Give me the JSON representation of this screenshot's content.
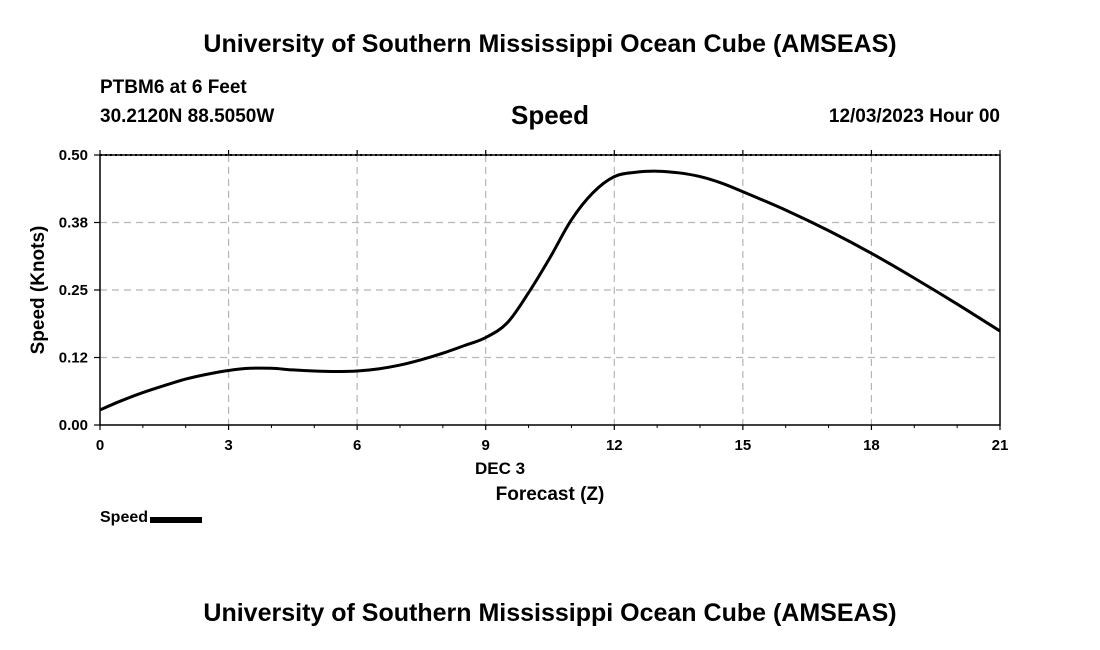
{
  "header": {
    "title": "University of Southern Mississippi Ocean Cube (AMSEAS)",
    "station": "PTBM6 at 6 Feet",
    "coords": "30.2120N  88.5050W",
    "date": "12/03/2023 Hour 00",
    "footer_title": "University of Southern Mississippi Ocean Cube (AMSEAS)"
  },
  "chart_data": {
    "type": "line",
    "title": "Speed",
    "xlabel": "Forecast (Z)",
    "xsublabel": "DEC 3",
    "ylabel": "Speed (Knots)",
    "xlim": [
      0,
      21
    ],
    "ylim": [
      0,
      0.5
    ],
    "xticks": [
      0,
      3,
      6,
      9,
      12,
      15,
      18,
      21
    ],
    "yticks": [
      0.0,
      0.125,
      0.25,
      0.375,
      0.5
    ],
    "ytick_labels": [
      "0.00",
      "0.12",
      "0.25",
      "0.38",
      "0.50"
    ],
    "grid": true,
    "legend": "bottom-left",
    "series": [
      {
        "name": "Speed",
        "color": "#000000",
        "x": [
          0,
          0.5,
          1,
          1.5,
          2,
          2.5,
          3,
          3.5,
          4,
          4.5,
          5,
          5.5,
          6,
          6.5,
          7,
          7.5,
          8,
          8.5,
          9,
          9.5,
          10,
          10.5,
          11,
          11.5,
          12,
          12.5,
          13,
          13.5,
          14,
          14.5,
          15,
          16,
          17,
          18,
          19,
          20,
          21
        ],
        "values": [
          0.028,
          0.045,
          0.06,
          0.073,
          0.085,
          0.094,
          0.101,
          0.105,
          0.105,
          0.102,
          0.1,
          0.099,
          0.1,
          0.104,
          0.111,
          0.121,
          0.133,
          0.147,
          0.162,
          0.189,
          0.245,
          0.31,
          0.38,
          0.43,
          0.46,
          0.468,
          0.47,
          0.467,
          0.46,
          0.448,
          0.432,
          0.398,
          0.36,
          0.318,
          0.272,
          0.224,
          0.174
        ]
      }
    ]
  }
}
